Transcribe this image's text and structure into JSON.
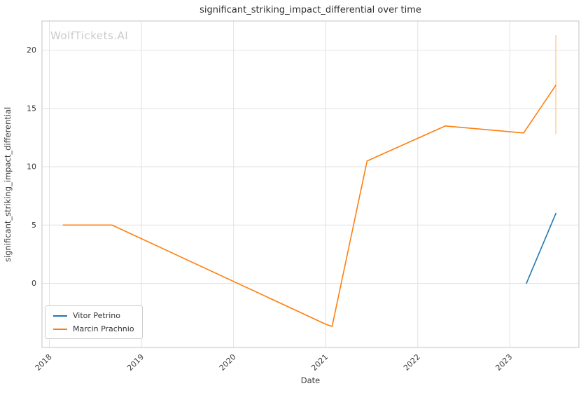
{
  "chart_data": {
    "type": "line",
    "title": "significant_striking_impact_differential over time",
    "xlabel": "Date",
    "ylabel": "significant_striking_impact_differential",
    "watermark": "WolfTickets.AI",
    "x_ticks": [
      "2018",
      "2019",
      "2020",
      "2021",
      "2022",
      "2023"
    ],
    "x_tick_values": [
      2018,
      2019,
      2020,
      2021,
      2022,
      2023
    ],
    "y_ticks": [
      0,
      5,
      10,
      15,
      20
    ],
    "xlim": [
      2017.92,
      2023.75
    ],
    "ylim": [
      -5.5,
      22.5
    ],
    "grid": true,
    "legend_position": "lower-left",
    "series": [
      {
        "name": "Vitor Petrino",
        "color": "#1f77b4",
        "x": [
          2023.18,
          2023.5
        ],
        "y": [
          0,
          6
        ]
      },
      {
        "name": "Marcin Prachnio",
        "color": "#ff7f0e",
        "x": [
          2018.15,
          2018.68,
          2021.0,
          2021.07,
          2021.45,
          2022.3,
          2023.15,
          2023.5
        ],
        "y": [
          5,
          5,
          -3.5,
          -3.7,
          10.5,
          13.5,
          12.9,
          17
        ]
      }
    ],
    "error_bars": [
      {
        "series": "Marcin Prachnio",
        "x": 2023.5,
        "y_low": 12.8,
        "y_high": 21.3,
        "color": "#ffbb78"
      }
    ],
    "colors": {
      "grid": "#e2e2e2",
      "frame": "#cdcdcd",
      "text": "#3a3a3a",
      "watermark": "#cbcbcb",
      "background": "#ffffff"
    }
  }
}
